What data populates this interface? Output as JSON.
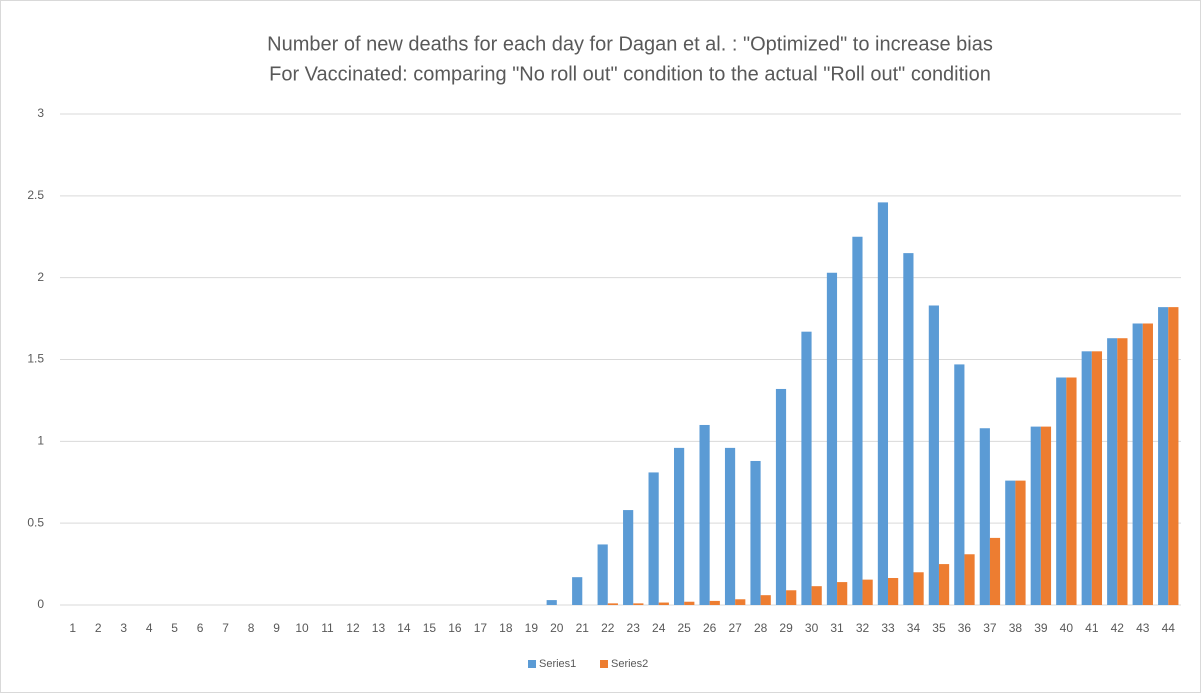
{
  "chart_data": {
    "type": "bar",
    "title": "Number of new deaths for each day for Dagan et al. : \"Optimized\" to increase bias",
    "subtitle": "For Vaccinated: comparing \"No roll out\" condition to the actual \"Roll out\" condition",
    "categories": [
      "1",
      "2",
      "3",
      "4",
      "5",
      "6",
      "7",
      "8",
      "9",
      "10",
      "11",
      "12",
      "13",
      "14",
      "15",
      "16",
      "17",
      "18",
      "19",
      "20",
      "21",
      "22",
      "23",
      "24",
      "25",
      "26",
      "27",
      "28",
      "29",
      "30",
      "31",
      "32",
      "33",
      "34",
      "35",
      "36",
      "37",
      "38",
      "39",
      "40",
      "41",
      "42",
      "43",
      "44"
    ],
    "series": [
      {
        "name": "Series1",
        "color": "#5b9bd5",
        "values": [
          0,
          0,
          0,
          0,
          0,
          0,
          0,
          0,
          0,
          0,
          0,
          0,
          0,
          0,
          0,
          0,
          0,
          0,
          0,
          0.03,
          0.17,
          0.37,
          0.58,
          0.81,
          0.96,
          1.1,
          0.96,
          0.88,
          1.32,
          1.67,
          2.03,
          2.25,
          2.46,
          2.15,
          1.83,
          1.47,
          1.08,
          0.76,
          1.09,
          1.39,
          1.55,
          1.63,
          1.72,
          1.82
        ]
      },
      {
        "name": "Series2",
        "color": "#ed7d31",
        "values": [
          0,
          0,
          0,
          0,
          0,
          0,
          0,
          0,
          0,
          0,
          0,
          0,
          0,
          0,
          0,
          0,
          0,
          0,
          0,
          0,
          0,
          0.01,
          0.01,
          0.015,
          0.02,
          0.025,
          0.035,
          0.06,
          0.09,
          0.115,
          0.14,
          0.155,
          0.165,
          0.2,
          0.25,
          0.31,
          0.41,
          0.76,
          1.09,
          1.39,
          1.55,
          1.63,
          1.72,
          1.82
        ]
      }
    ],
    "ylim": [
      0,
      3
    ],
    "yticks": [
      0,
      0.5,
      1,
      1.5,
      2,
      2.5,
      3
    ],
    "grid": true,
    "legend": "bottom"
  }
}
